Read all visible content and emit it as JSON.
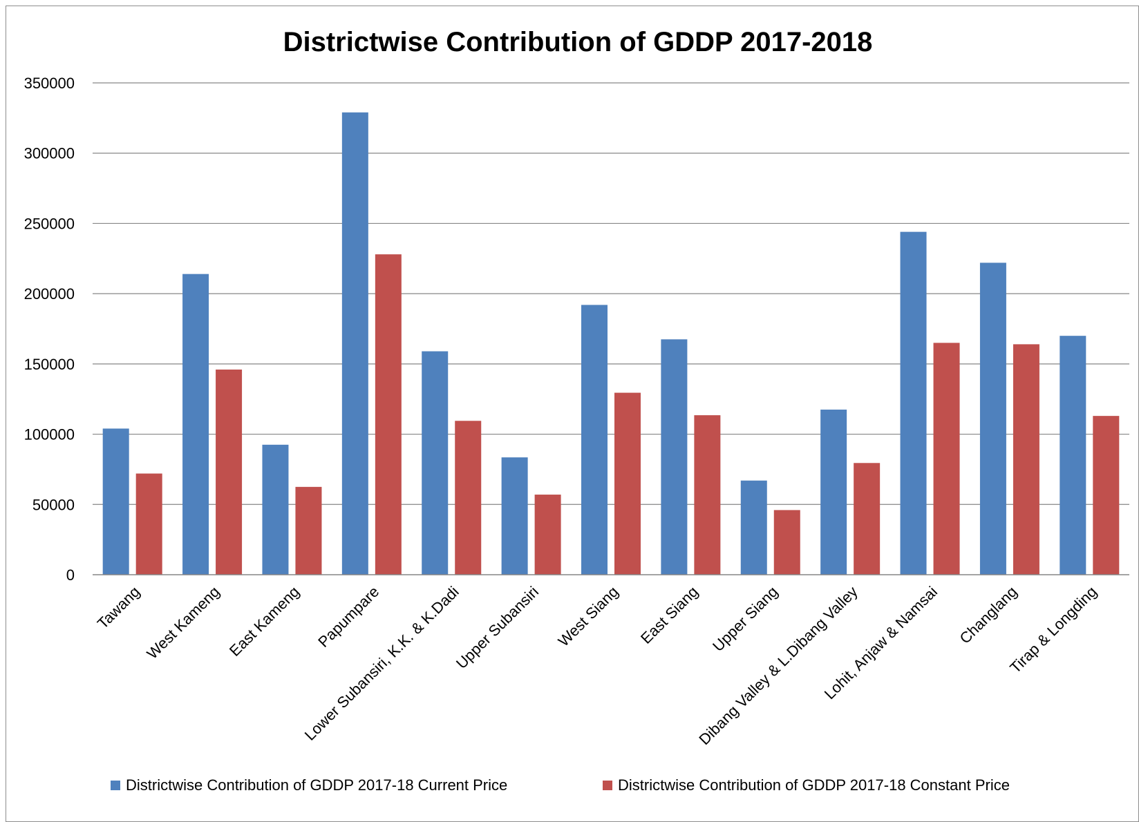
{
  "chart_data": {
    "type": "bar",
    "title": "Districtwise Contribution of GDDP 2017-2018",
    "xlabel": "",
    "ylabel": "",
    "ylim": [
      0,
      350000
    ],
    "yticks": [
      0,
      50000,
      100000,
      150000,
      200000,
      250000,
      300000,
      350000
    ],
    "grid": true,
    "legend_position": "bottom",
    "categories": [
      "Tawang",
      "West Kameng",
      "East Kameng",
      "Papumpare",
      "Lower Subansiri, K.K. & K.Dadi",
      "Upper Subansiri",
      "West Siang",
      "East Siang",
      "Upper Siang",
      "Dibang Valley & L.Dibang Valley",
      "Lohit, Anjaw & Namsai",
      "Changlang",
      "Tirap & Longding"
    ],
    "series": [
      {
        "name": "Districtwise Contribution of GDDP 2017-18 Current  Price",
        "color": "#4F81BD",
        "values": [
          104000,
          214000,
          92500,
          329000,
          159000,
          83500,
          192000,
          167500,
          67000,
          117500,
          244000,
          222000,
          170000
        ]
      },
      {
        "name": "Districtwise Contribution of GDDP 2017-18 Constant Price",
        "color": "#C0504D",
        "values": [
          72000,
          146000,
          62500,
          228000,
          109500,
          57000,
          129500,
          113500,
          46000,
          79500,
          165000,
          164000,
          113000
        ]
      }
    ]
  }
}
